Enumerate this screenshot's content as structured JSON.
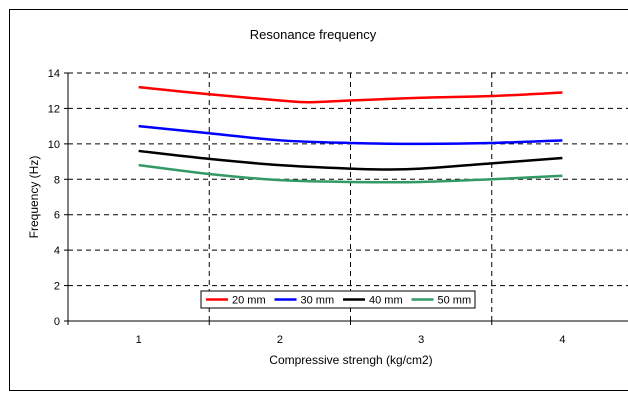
{
  "chart_data": {
    "type": "line",
    "title": "Resonance frequency",
    "xlabel": "Compressive strengh (kg/cm2)",
    "ylabel": "Frequency (Hz)",
    "x_ticks": [
      "1",
      "2",
      "3",
      "4"
    ],
    "y_ticks": [
      "0",
      "2",
      "4",
      "6",
      "8",
      "10",
      "12",
      "14"
    ],
    "xlim": [
      0.5,
      4.5
    ],
    "ylim": [
      0,
      14
    ],
    "grid": "dashed",
    "legend_position": "bottom-center",
    "series": [
      {
        "name": "20 mm",
        "color": "#ff0000",
        "points": [
          [
            1,
            13.2
          ],
          [
            1.5,
            12.8
          ],
          [
            2,
            12.45
          ],
          [
            2.2,
            12.35
          ],
          [
            2.5,
            12.45
          ],
          [
            3,
            12.6
          ],
          [
            3.5,
            12.7
          ],
          [
            4,
            12.9
          ]
        ]
      },
      {
        "name": "30 mm",
        "color": "#0000ff",
        "points": [
          [
            1,
            11.0
          ],
          [
            1.5,
            10.6
          ],
          [
            2,
            10.2
          ],
          [
            2.5,
            10.05
          ],
          [
            3,
            10.0
          ],
          [
            3.5,
            10.05
          ],
          [
            4,
            10.2
          ]
        ]
      },
      {
        "name": "40 mm",
        "color": "#000000",
        "points": [
          [
            1,
            9.6
          ],
          [
            1.5,
            9.15
          ],
          [
            2,
            8.8
          ],
          [
            2.5,
            8.6
          ],
          [
            2.75,
            8.55
          ],
          [
            3,
            8.6
          ],
          [
            3.5,
            8.9
          ],
          [
            4,
            9.2
          ]
        ]
      },
      {
        "name": "50 mm",
        "color": "#339966",
        "points": [
          [
            1,
            8.8
          ],
          [
            1.5,
            8.3
          ],
          [
            2,
            7.95
          ],
          [
            2.5,
            7.85
          ],
          [
            3,
            7.85
          ],
          [
            3.5,
            8.0
          ],
          [
            4,
            8.2
          ]
        ]
      }
    ]
  }
}
